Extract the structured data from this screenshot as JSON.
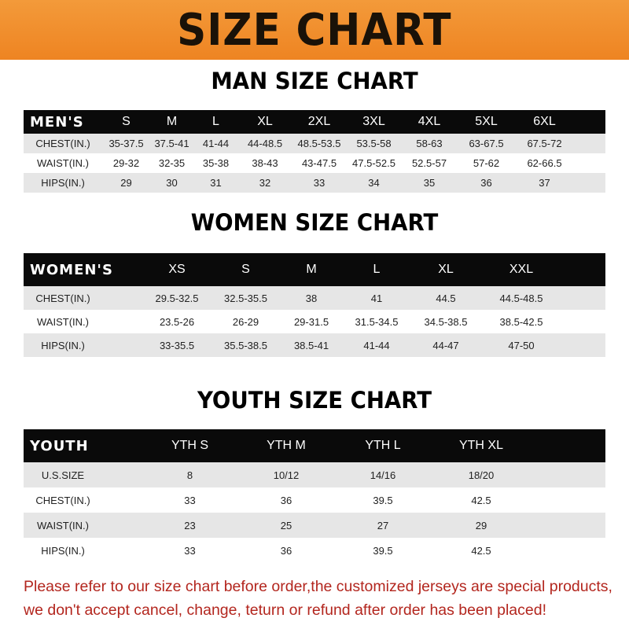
{
  "banner": {
    "title": "SIZE CHART",
    "color": "#ee8422"
  },
  "men": {
    "title": "MAN SIZE CHART",
    "header": [
      "MEN'S",
      "S",
      "M",
      "L",
      "XL",
      "2XL",
      "3XL",
      "4XL",
      "5XL",
      "6XL"
    ],
    "rows": [
      [
        "CHEST(IN.)",
        "35-37.5",
        "37.5-41",
        "41-44",
        "44-48.5",
        "48.5-53.5",
        "53.5-58",
        "58-63",
        "63-67.5",
        "67.5-72"
      ],
      [
        "WAIST(IN.)",
        "29-32",
        "32-35",
        "35-38",
        "38-43",
        "43-47.5",
        "47.5-52.5",
        "52.5-57",
        "57-62",
        "62-66.5"
      ],
      [
        "HIPS(IN.)",
        "29",
        "30",
        "31",
        "32",
        "33",
        "34",
        "35",
        "36",
        "37"
      ]
    ]
  },
  "women": {
    "title": "WOMEN SIZE CHART",
    "header": [
      "WOMEN'S",
      "XS",
      "S",
      "M",
      "L",
      "XL",
      "XXL"
    ],
    "rows": [
      [
        "CHEST(IN.)",
        "29.5-32.5",
        "32.5-35.5",
        "38",
        "41",
        "44.5",
        "44.5-48.5"
      ],
      [
        "WAIST(IN.)",
        "23.5-26",
        "26-29",
        "29-31.5",
        "31.5-34.5",
        "34.5-38.5",
        "38.5-42.5"
      ],
      [
        "HIPS(IN.)",
        "33-35.5",
        "35.5-38.5",
        "38.5-41",
        "41-44",
        "44-47",
        "47-50"
      ]
    ]
  },
  "youth": {
    "title": "YOUTH SIZE CHART",
    "header": [
      "YOUTH",
      "YTH S",
      "YTH M",
      "YTH L",
      "YTH XL"
    ],
    "rows": [
      [
        "U.S.SIZE",
        "8",
        "10/12",
        "14/16",
        "18/20"
      ],
      [
        "CHEST(IN.)",
        "33",
        "36",
        "39.5",
        "42.5"
      ],
      [
        "WAIST(IN.)",
        "23",
        "25",
        "27",
        "29"
      ],
      [
        "HIPS(IN.)",
        "33",
        "36",
        "39.5",
        "42.5"
      ]
    ]
  },
  "notice": [
    "Please refer to our size chart before order,the customized jerseys are special products,",
    "we don't accept cancel, change, teturn or refund after order has been placed!"
  ],
  "notice_color": "#b3261e"
}
